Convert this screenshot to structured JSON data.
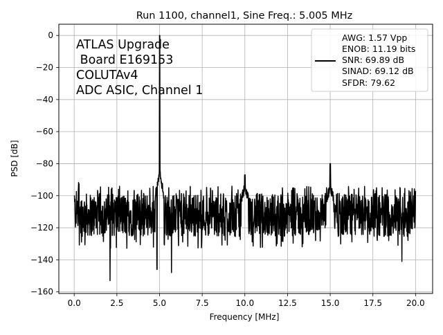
{
  "chart_data": {
    "type": "line",
    "title": "Run 1100, channel1, Sine Freq.: 5.005 MHz",
    "xlabel": "Frequency [MHz]",
    "ylabel": "PSD [dB]",
    "xlim": [
      -0.9,
      21.0
    ],
    "ylim": [
      -161,
      7
    ],
    "x_ticks": [
      0.0,
      2.5,
      5.0,
      7.5,
      10.0,
      12.5,
      15.0,
      17.5,
      20.0
    ],
    "x_tick_labels": [
      "0.0",
      "2.5",
      "5.0",
      "7.5",
      "10.0",
      "12.5",
      "15.0",
      "17.5",
      "20.0"
    ],
    "y_ticks": [
      0,
      -20,
      -40,
      -60,
      -80,
      -100,
      -120,
      -140,
      -160
    ],
    "y_tick_labels": [
      "0",
      "−20",
      "−40",
      "−60",
      "−80",
      "−100",
      "−120",
      "−140",
      "−160"
    ],
    "grid": true,
    "annotation_lines": [
      "ATLAS Upgrade",
      " Board E169153",
      "COLUTAv4",
      "ADC ASIC, Channel 1"
    ],
    "legend": {
      "placement": "top-right",
      "lines": [
        "AWG: 1.57 Vpp",
        "ENOB: 11.19 bits",
        "SNR: 69.89 dB",
        "SINAD: 69.12 dB",
        "SFDR: 79.62"
      ]
    },
    "series_color": "#000000",
    "noise_floor_db": -112,
    "noise_band_db": [
      -127,
      -97
    ],
    "features": [
      {
        "kind": "fundamental",
        "x": 5.005,
        "y": 0
      },
      {
        "kind": "spur",
        "x": 15.0,
        "y": -80
      },
      {
        "kind": "spur",
        "x": 10.0,
        "y": -87
      },
      {
        "kind": "dip",
        "x": 2.1,
        "y": -153
      },
      {
        "kind": "dip",
        "x": 19.2,
        "y": -141
      },
      {
        "kind": "dip",
        "x": 5.7,
        "y": -148
      },
      {
        "kind": "dip",
        "x": 4.85,
        "y": -146
      }
    ]
  }
}
